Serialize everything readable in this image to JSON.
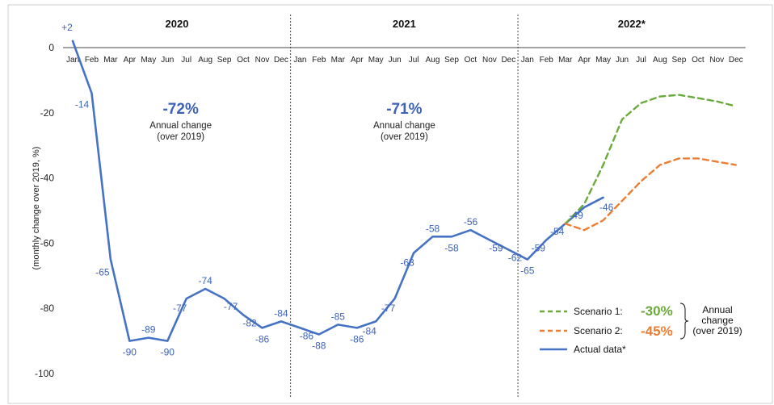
{
  "chart_data": {
    "type": "line",
    "years": [
      "2020",
      "2021",
      "2022*"
    ],
    "months": [
      "Jan",
      "Feb",
      "Mar",
      "Apr",
      "May",
      "Jun",
      "Jul",
      "Aug",
      "Sep",
      "Oct",
      "Nov",
      "Dec",
      "Jan",
      "Feb",
      "Mar",
      "Apr",
      "May",
      "Jun",
      "Jul",
      "Aug",
      "Sep",
      "Oct",
      "Nov",
      "Dec",
      "Jan",
      "Feb",
      "Mar",
      "Apr",
      "May",
      "Jun",
      "Jul",
      "Aug",
      "Sep",
      "Oct",
      "Nov",
      "Dec"
    ],
    "ylabel": "(monthly change over 2019, %)",
    "ylim": [
      -100,
      0
    ],
    "yticks": [
      0,
      -20,
      -40,
      -60,
      -80,
      -100
    ],
    "series": [
      {
        "name": "Actual data*",
        "color": "#4472c4",
        "style": "solid",
        "values": [
          2,
          -14,
          -65,
          -90,
          -89,
          -90,
          -77,
          -74,
          -77,
          -82,
          -86,
          -84,
          -86,
          -88,
          -85,
          -86,
          -84,
          -77,
          -63,
          -58,
          -58,
          -56,
          -59,
          -62,
          -65,
          -59,
          -54,
          -49,
          -46
        ],
        "labels": [
          "+2",
          "-14",
          "-65",
          "-90",
          "-89",
          "-90",
          "-77",
          "-74",
          "-77",
          "-82",
          "-86",
          "-84",
          "-86",
          "-88",
          "-85",
          "-86",
          "-84",
          "-77",
          "-63",
          "-58",
          "-58",
          "-56",
          "-59",
          "-62",
          "-65",
          "-59",
          "-54",
          "-49",
          "-46"
        ]
      },
      {
        "name": "Scenario 1:",
        "color": "#6aaa3a",
        "style": "dashed",
        "start_index": 26,
        "values": [
          -54,
          -48,
          -36,
          -22,
          -17,
          -15,
          -14.5,
          -15.5,
          -16.5,
          -18
        ]
      },
      {
        "name": "Scenario 2:",
        "color": "#ed7d31",
        "style": "dashed",
        "start_index": 26,
        "values": [
          -54,
          -56,
          -53,
          -47,
          -41,
          -36,
          -34,
          -34,
          -35,
          -36
        ]
      }
    ],
    "annotations": [
      {
        "value": "-72%",
        "text1": "Annual change",
        "text2": "(over 2019)"
      },
      {
        "value": "-71%",
        "text1": "Annual change",
        "text2": "(over 2019)"
      }
    ],
    "legend": {
      "placement": "bottom-right",
      "scenario1_value": "-30%",
      "scenario2_value": "-45%",
      "annual_text": [
        "Annual",
        "change",
        "(over 2019)"
      ]
    },
    "colors": {
      "actual": "#4472c4",
      "scenario1": "#6aaa3a",
      "scenario2": "#ed7d31",
      "annotation": "#3d63b8"
    }
  }
}
